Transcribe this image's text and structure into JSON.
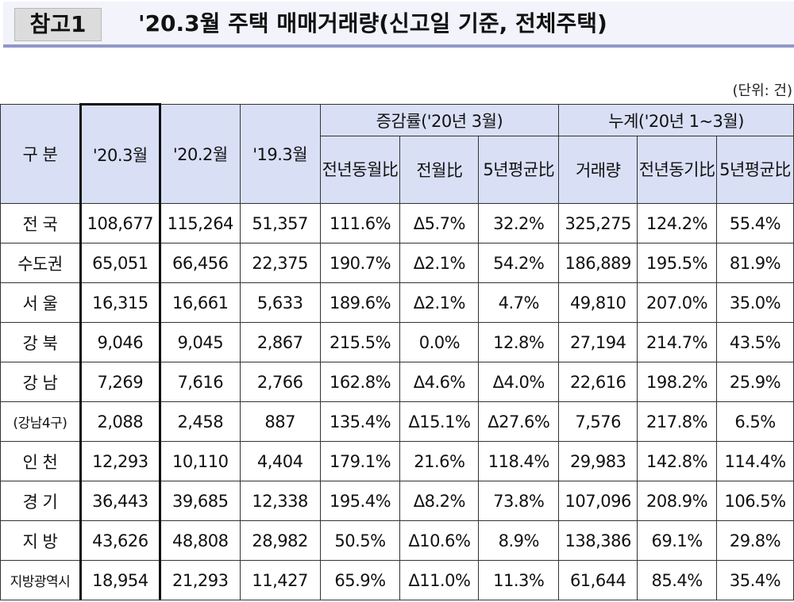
{
  "header": {
    "ref_label": "참고1",
    "title": "'20.3월 주택 매매거래량(신고일 기준, 전체주택)"
  },
  "unit_label": "(단위: 건)",
  "table": {
    "col_region": "구 분",
    "col_cur": "'20.3월",
    "col_prev": "'20.2월",
    "col_lastyear": "'19.3월",
    "group_rate": "증감률('20년 3월)",
    "rate_yoy": "전년동월比",
    "rate_mom": "전월比",
    "rate_5y": "5년평균比",
    "group_cum": "누계('20년 1~3월)",
    "cum_volume": "거래량",
    "cum_yoy": "전년동기比",
    "cum_5y": "5년평균比",
    "rows": [
      [
        "전 국",
        "108,677",
        "115,264",
        "51,357",
        "111.6%",
        "Δ5.7%",
        "32.2%",
        "325,275",
        "124.2%",
        "55.4%"
      ],
      [
        "수도권",
        "65,051",
        "66,456",
        "22,375",
        "190.7%",
        "Δ2.1%",
        "54.2%",
        "186,889",
        "195.5%",
        "81.9%"
      ],
      [
        "서 울",
        "16,315",
        "16,661",
        "5,633",
        "189.6%",
        "Δ2.1%",
        "4.7%",
        "49,810",
        "207.0%",
        "35.0%"
      ],
      [
        "강 북",
        "9,046",
        "9,045",
        "2,867",
        "215.5%",
        "0.0%",
        "12.8%",
        "27,194",
        "214.7%",
        "43.5%"
      ],
      [
        "강 남",
        "7,269",
        "7,616",
        "2,766",
        "162.8%",
        "Δ4.6%",
        "Δ4.0%",
        "22,616",
        "198.2%",
        "25.9%"
      ],
      [
        "(강남4구)",
        "2,088",
        "2,458",
        "887",
        "135.4%",
        "Δ15.1%",
        "Δ27.6%",
        "7,576",
        "217.8%",
        "6.5%"
      ],
      [
        "인 천",
        "12,293",
        "10,110",
        "4,404",
        "179.1%",
        "21.6%",
        "118.4%",
        "29,983",
        "142.8%",
        "114.4%"
      ],
      [
        "경 기",
        "36,443",
        "39,685",
        "12,338",
        "195.4%",
        "Δ8.2%",
        "73.8%",
        "107,096",
        "208.9%",
        "106.5%"
      ],
      [
        "지 방",
        "43,626",
        "48,808",
        "28,982",
        "50.5%",
        "Δ10.6%",
        "8.9%",
        "138,386",
        "69.1%",
        "29.8%"
      ],
      [
        "지방광역시",
        "18,954",
        "21,293",
        "11,427",
        "65.9%",
        "Δ11.0%",
        "11.3%",
        "61,644",
        "85.4%",
        "35.4%"
      ]
    ]
  }
}
